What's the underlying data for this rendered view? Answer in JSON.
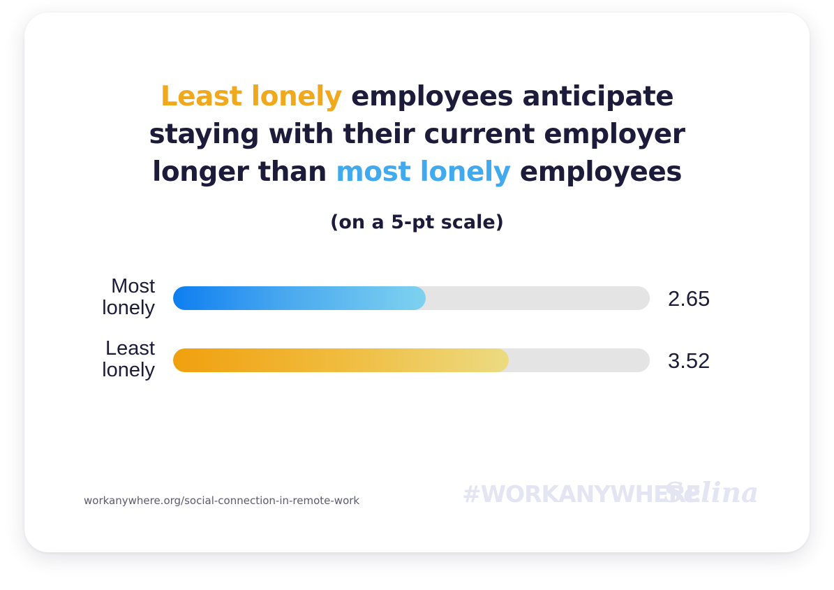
{
  "title": {
    "line1_highlight": "Least lonely",
    "line1_rest": " employees anticipate",
    "line2": "staying with their current employer",
    "line3_start": "longer than ",
    "line3_highlight": "most lonely",
    "line3_end": " employees"
  },
  "subtitle": "(on a 5-pt scale)",
  "colors": {
    "title_text": "#1c1b3a",
    "least_lonely_accent": "#f0a81c",
    "most_lonely_accent": "#41a9ee",
    "track": "#e4e4e4"
  },
  "chart_data": {
    "type": "bar",
    "orientation": "horizontal",
    "scale_max": 5,
    "categories": [
      "Most lonely",
      "Least lonely"
    ],
    "category_lines": [
      [
        "Most",
        "lonely"
      ],
      [
        "Least",
        "lonely"
      ]
    ],
    "values": [
      2.65,
      3.52
    ],
    "value_labels": [
      "2.65",
      "3.52"
    ],
    "xlim": [
      0,
      5
    ],
    "grid": false
  },
  "footer": {
    "url": "workanywhere.org/social-connection-in-remote-work",
    "hashtag": "#WORKANYWHERE",
    "brand": "Selina"
  }
}
